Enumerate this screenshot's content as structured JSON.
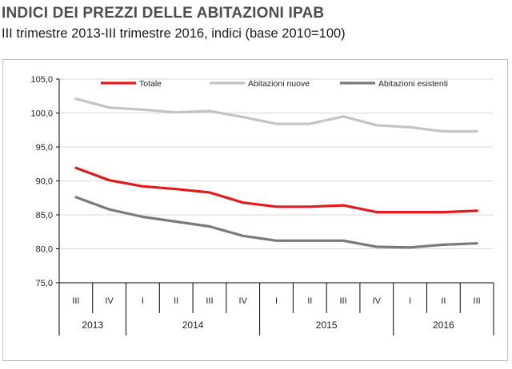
{
  "header": {
    "title": "INDICI DEI PREZZI DELLE ABITAZIONI IPAB",
    "subtitle": "III trimestre 2013-III trimestre 2016, indici (base 2010=100)"
  },
  "chart_data": {
    "type": "line",
    "title": "",
    "xlabel": "",
    "ylabel": "",
    "categories": [
      "III",
      "IV",
      "I",
      "II",
      "III",
      "IV",
      "I",
      "II",
      "III",
      "IV",
      "I",
      "II",
      "III"
    ],
    "years": [
      {
        "label": "2013",
        "start": 0,
        "end": 1
      },
      {
        "label": "2014",
        "start": 2,
        "end": 5
      },
      {
        "label": "2015",
        "start": 6,
        "end": 9
      },
      {
        "label": "2016",
        "start": 10,
        "end": 12
      }
    ],
    "ylim": [
      75,
      105
    ],
    "yticks": [
      "75,0",
      "80,0",
      "85,0",
      "90,0",
      "95,0",
      "100,0",
      "105,0"
    ],
    "ytick_values": [
      75,
      80,
      85,
      90,
      95,
      100,
      105
    ],
    "legend_position": "top",
    "series": [
      {
        "name": "Totale",
        "color": "#e31a1c",
        "values": [
          91.9,
          90.1,
          89.2,
          88.8,
          88.3,
          86.8,
          86.2,
          86.2,
          86.4,
          85.4,
          85.4,
          85.4,
          85.6
        ]
      },
      {
        "name": "Abitazioni nuove",
        "color": "#c4c4c4",
        "values": [
          102.1,
          100.8,
          100.5,
          100.1,
          100.3,
          99.4,
          98.4,
          98.4,
          99.5,
          98.2,
          97.9,
          97.3,
          97.3
        ]
      },
      {
        "name": "Abitazioni esistenti",
        "color": "#7a7a7a",
        "values": [
          87.6,
          85.8,
          84.7,
          84.0,
          83.3,
          81.9,
          81.2,
          81.2,
          81.2,
          80.3,
          80.2,
          80.6,
          80.8
        ]
      }
    ]
  }
}
